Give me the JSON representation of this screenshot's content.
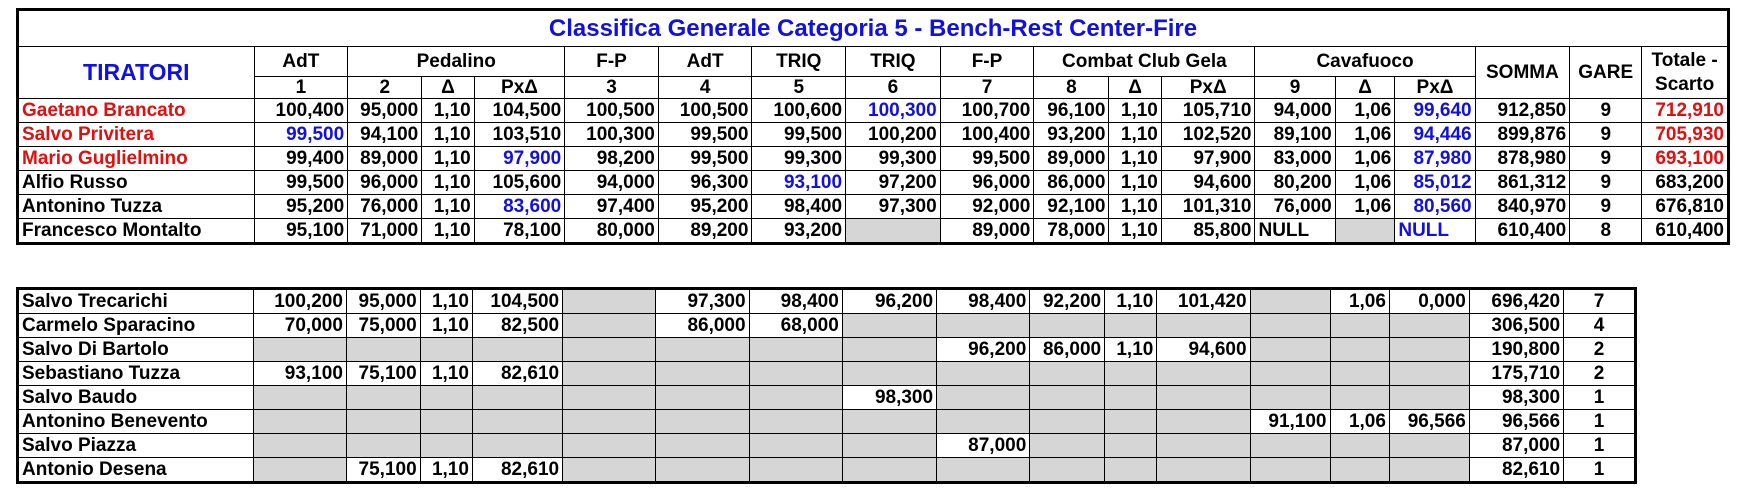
{
  "title": "Classifica Generale Categoria 5 - Bench-Rest Center-Fire",
  "header": {
    "tiratori": "TIRATORI",
    "groups": [
      "AdT",
      "Pedalino",
      "F-P",
      "AdT",
      "TRIQ",
      "TRIQ",
      "F-P",
      "Combat Club Gela",
      "Cavafuoco"
    ],
    "sub": [
      "1",
      "2",
      "Δ",
      "PxΔ",
      "3",
      "4",
      "5",
      "6",
      "7",
      "8",
      "Δ",
      "PxΔ",
      "9",
      "Δ",
      "PxΔ"
    ],
    "somma": "SOMMA",
    "gare": "GARE",
    "totale": "Totale - Scarto"
  },
  "colors": {
    "title": "#1010e0",
    "highlight_red": "#e01010",
    "highlight_blue": "#1010e0",
    "empty_cell": "#d6d6d6"
  },
  "ranking": [
    {
      "name": "Gaetano Brancato",
      "name_color": "red",
      "cells": [
        "100,400",
        "95,000",
        "1,10",
        "104,500",
        "100,500",
        "100,500",
        "100,600",
        "100,300",
        "100,700",
        "96,100",
        "1,10",
        "105,710",
        "94,000",
        "1,06",
        "99,640",
        "912,850",
        "9",
        "712,910"
      ],
      "blue": [
        7,
        14
      ],
      "red": [
        17
      ]
    },
    {
      "name": "Salvo Privitera",
      "name_color": "red",
      "cells": [
        "99,500",
        "94,100",
        "1,10",
        "103,510",
        "100,300",
        "99,500",
        "99,500",
        "100,200",
        "100,400",
        "93,200",
        "1,10",
        "102,520",
        "89,100",
        "1,06",
        "94,446",
        "899,876",
        "9",
        "705,930"
      ],
      "blue": [
        0,
        14
      ],
      "red": [
        17
      ]
    },
    {
      "name": "Mario Guglielmino",
      "name_color": "red",
      "cells": [
        "99,400",
        "89,000",
        "1,10",
        "97,900",
        "98,200",
        "99,500",
        "99,300",
        "99,300",
        "99,500",
        "89,000",
        "1,10",
        "97,900",
        "83,000",
        "1,06",
        "87,980",
        "878,980",
        "9",
        "693,100"
      ],
      "blue": [
        3,
        14
      ],
      "red": [
        17
      ]
    },
    {
      "name": "Alfio Russo",
      "name_color": "black",
      "cells": [
        "99,500",
        "96,000",
        "1,10",
        "105,600",
        "94,000",
        "96,300",
        "93,100",
        "97,200",
        "96,000",
        "86,000",
        "1,10",
        "94,600",
        "80,200",
        "1,06",
        "85,012",
        "861,312",
        "9",
        "683,200"
      ],
      "blue": [
        6,
        14
      ],
      "red": []
    },
    {
      "name": "Antonino Tuzza",
      "name_color": "black",
      "cells": [
        "95,200",
        "76,000",
        "1,10",
        "83,600",
        "97,400",
        "95,200",
        "98,400",
        "97,300",
        "92,000",
        "92,100",
        "1,10",
        "101,310",
        "76,000",
        "1,06",
        "80,560",
        "840,970",
        "9",
        "676,810"
      ],
      "blue": [
        3,
        14
      ],
      "red": []
    },
    {
      "name": "Francesco Montalto",
      "name_color": "black",
      "cells": [
        "95,100",
        "71,000",
        "1,10",
        "78,100",
        "80,000",
        "89,200",
        "93,200",
        "",
        "89,000",
        "78,000",
        "1,10",
        "85,800",
        "NULL",
        "",
        "NULL",
        "610,400",
        "8",
        "610,400"
      ],
      "blue": [
        14
      ],
      "red": [],
      "gray": [
        7,
        13
      ],
      "left": [
        12,
        14
      ]
    }
  ],
  "others": [
    {
      "name": "Salvo Trecarichi",
      "cells": [
        "100,200",
        "95,000",
        "1,10",
        "104,500",
        "",
        "97,300",
        "98,400",
        "96,200",
        "98,400",
        "92,200",
        "1,10",
        "101,420",
        "",
        "1,06",
        "0,000",
        "696,420",
        "7"
      ]
    },
    {
      "name": "Carmelo Sparacino",
      "cells": [
        "70,000",
        "75,000",
        "1,10",
        "82,500",
        "",
        "86,000",
        "68,000",
        "",
        "",
        "",
        "",
        "",
        "",
        "",
        "",
        "306,500",
        "4"
      ]
    },
    {
      "name": "Salvo Di Bartolo",
      "cells": [
        "",
        "",
        "",
        "",
        "",
        "",
        "",
        "",
        "96,200",
        "86,000",
        "1,10",
        "94,600",
        "",
        "",
        "",
        "190,800",
        "2"
      ]
    },
    {
      "name": "Sebastiano Tuzza",
      "cells": [
        "93,100",
        "75,100",
        "1,10",
        "82,610",
        "",
        "",
        "",
        "",
        "",
        "",
        "",
        "",
        "",
        "",
        "",
        "175,710",
        "2"
      ]
    },
    {
      "name": "Salvo Baudo",
      "cells": [
        "",
        "",
        "",
        "",
        "",
        "",
        "",
        "98,300",
        "",
        "",
        "",
        "",
        "",
        "",
        "",
        "98,300",
        "1"
      ]
    },
    {
      "name": "Antonino Benevento",
      "cells": [
        "",
        "",
        "",
        "",
        "",
        "",
        "",
        "",
        "",
        "",
        "",
        "",
        "91,100",
        "1,06",
        "96,566",
        "96,566",
        "1"
      ]
    },
    {
      "name": "Salvo Piazza",
      "cells": [
        "",
        "",
        "",
        "",
        "",
        "",
        "",
        "",
        "87,000",
        "",
        "",
        "",
        "",
        "",
        "",
        "87,000",
        "1"
      ]
    },
    {
      "name": "Antonio Desena",
      "cells": [
        "",
        "75,100",
        "1,10",
        "82,610",
        "",
        "",
        "",
        "",
        "",
        "",
        "",
        "",
        "",
        "",
        "",
        "82,610",
        "1"
      ]
    }
  ]
}
